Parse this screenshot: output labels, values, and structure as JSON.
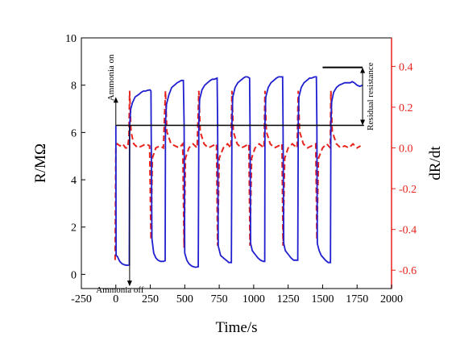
{
  "chart_data": {
    "type": "line",
    "xlabel": "Time/s",
    "ylabel_left": "R/MΩ",
    "ylabel_right": "dR/dt",
    "xlim": [
      -250,
      2000
    ],
    "ylim_left": [
      -0.6,
      10
    ],
    "ylim_right": [
      -0.69,
      0.54
    ],
    "x_ticks": [
      -250,
      0,
      250,
      500,
      750,
      1000,
      1250,
      1500,
      1750,
      2000
    ],
    "x_tick_labels": [
      "-250",
      "0",
      "250",
      "500",
      "750",
      "1000",
      "1250",
      "1500",
      "1750",
      "2000"
    ],
    "y_left_ticks": [
      0,
      2,
      4,
      6,
      8,
      10
    ],
    "y_left_tick_labels": [
      "0",
      "2",
      "4",
      "6",
      "8",
      "10"
    ],
    "y_right_ticks": [
      -0.6,
      -0.4,
      -0.2,
      0.0,
      0.2,
      0.4
    ],
    "y_right_tick_labels": [
      "-0.6",
      "-0.4",
      "-0.2",
      "0.0",
      "0.2",
      "0.4"
    ],
    "colors": {
      "resistance": "#1f1fd0",
      "derivative": "#e8221c",
      "axis_left": "#000000",
      "axis_right": "#e8221c"
    },
    "series": [
      {
        "axis": "left",
        "style": "solid",
        "points": [
          [
            0,
            6.3
          ],
          [
            2,
            0.8
          ],
          [
            12,
            0.75
          ],
          [
            28,
            0.55
          ],
          [
            45,
            0.45
          ],
          [
            65,
            0.4
          ],
          [
            85,
            0.38
          ],
          [
            98,
            0.4
          ],
          [
            100,
            6.3
          ],
          [
            108,
            7.0
          ],
          [
            120,
            7.25
          ],
          [
            140,
            7.5
          ],
          [
            165,
            7.6
          ],
          [
            185,
            7.7
          ],
          [
            200,
            7.75
          ],
          [
            215,
            7.75
          ],
          [
            230,
            7.78
          ],
          [
            248,
            7.8
          ],
          [
            255,
            7.75
          ],
          [
            256,
            6.4
          ],
          [
            262,
            1.5
          ],
          [
            275,
            0.9
          ],
          [
            290,
            0.7
          ],
          [
            305,
            0.6
          ],
          [
            325,
            0.55
          ],
          [
            345,
            0.55
          ],
          [
            358,
            0.58
          ],
          [
            360,
            6.4
          ],
          [
            368,
            7.2
          ],
          [
            385,
            7.6
          ],
          [
            405,
            7.9
          ],
          [
            425,
            8.0
          ],
          [
            445,
            8.1
          ],
          [
            460,
            8.15
          ],
          [
            475,
            8.2
          ],
          [
            490,
            8.2
          ],
          [
            495,
            6.4
          ],
          [
            500,
            0.9
          ],
          [
            515,
            0.6
          ],
          [
            530,
            0.45
          ],
          [
            550,
            0.35
          ],
          [
            575,
            0.3
          ],
          [
            598,
            0.32
          ],
          [
            602,
            6.4
          ],
          [
            608,
            7.4
          ],
          [
            625,
            7.8
          ],
          [
            645,
            8.0
          ],
          [
            665,
            8.1
          ],
          [
            685,
            8.2
          ],
          [
            700,
            8.25
          ],
          [
            715,
            8.25
          ],
          [
            735,
            8.3
          ],
          [
            738,
            6.4
          ],
          [
            743,
            1.2
          ],
          [
            760,
            0.8
          ],
          [
            780,
            0.7
          ],
          [
            800,
            0.6
          ],
          [
            820,
            0.5
          ],
          [
            838,
            0.5
          ],
          [
            842,
            6.4
          ],
          [
            848,
            7.5
          ],
          [
            865,
            7.9
          ],
          [
            885,
            8.1
          ],
          [
            905,
            8.2
          ],
          [
            925,
            8.3
          ],
          [
            940,
            8.35
          ],
          [
            955,
            8.35
          ],
          [
            970,
            8.3
          ],
          [
            973,
            6.4
          ],
          [
            978,
            1.3
          ],
          [
            990,
            1.0
          ],
          [
            1010,
            0.85
          ],
          [
            1030,
            0.7
          ],
          [
            1050,
            0.6
          ],
          [
            1070,
            0.55
          ],
          [
            1080,
            0.55
          ],
          [
            1082,
            6.4
          ],
          [
            1088,
            7.5
          ],
          [
            1105,
            7.9
          ],
          [
            1125,
            8.1
          ],
          [
            1145,
            8.2
          ],
          [
            1165,
            8.3
          ],
          [
            1180,
            8.35
          ],
          [
            1195,
            8.35
          ],
          [
            1210,
            8.35
          ],
          [
            1213,
            6.4
          ],
          [
            1218,
            1.3
          ],
          [
            1230,
            1.0
          ],
          [
            1250,
            0.85
          ],
          [
            1270,
            0.7
          ],
          [
            1290,
            0.6
          ],
          [
            1305,
            0.6
          ],
          [
            1320,
            0.6
          ],
          [
            1323,
            6.4
          ],
          [
            1328,
            7.5
          ],
          [
            1345,
            7.9
          ],
          [
            1365,
            8.1
          ],
          [
            1385,
            8.2
          ],
          [
            1405,
            8.3
          ],
          [
            1420,
            8.3
          ],
          [
            1440,
            8.35
          ],
          [
            1455,
            8.35
          ],
          [
            1458,
            6.4
          ],
          [
            1462,
            1.3
          ],
          [
            1475,
            1.0
          ],
          [
            1490,
            0.8
          ],
          [
            1505,
            0.7
          ],
          [
            1520,
            0.6
          ],
          [
            1540,
            0.5
          ],
          [
            1557,
            0.5
          ],
          [
            1560,
            6.4
          ],
          [
            1566,
            7.3
          ],
          [
            1580,
            7.7
          ],
          [
            1600,
            7.9
          ],
          [
            1620,
            8.0
          ],
          [
            1640,
            8.05
          ],
          [
            1660,
            8.1
          ],
          [
            1680,
            8.1
          ],
          [
            1700,
            8.1
          ],
          [
            1715,
            8.15
          ],
          [
            1730,
            8.1
          ],
          [
            1750,
            8.0
          ],
          [
            1770,
            7.95
          ],
          [
            1790,
            8.0
          ]
        ]
      },
      {
        "axis": "right",
        "style": "dashed",
        "points": [
          [
            -5,
            -0.55
          ],
          [
            0,
            0.0
          ],
          [
            10,
            0.02
          ],
          [
            30,
            0.01
          ],
          [
            50,
            0.02
          ],
          [
            70,
            0.0
          ],
          [
            85,
            0.0
          ],
          [
            95,
            0.05
          ],
          [
            100,
            0.28
          ],
          [
            110,
            0.08
          ],
          [
            130,
            0.02
          ],
          [
            160,
            0.0
          ],
          [
            190,
            0.01
          ],
          [
            220,
            0.02
          ],
          [
            245,
            0.01
          ],
          [
            255,
            -0.45
          ],
          [
            265,
            -0.05
          ],
          [
            290,
            0.0
          ],
          [
            320,
            0.01
          ],
          [
            345,
            0.0
          ],
          [
            360,
            0.28
          ],
          [
            370,
            0.08
          ],
          [
            400,
            0.02
          ],
          [
            430,
            0.01
          ],
          [
            460,
            0.0
          ],
          [
            485,
            0.02
          ],
          [
            495,
            -0.49
          ],
          [
            505,
            -0.05
          ],
          [
            530,
            0.0
          ],
          [
            560,
            0.02
          ],
          [
            590,
            0.0
          ],
          [
            602,
            0.28
          ],
          [
            612,
            0.08
          ],
          [
            640,
            0.02
          ],
          [
            670,
            0.0
          ],
          [
            700,
            0.01
          ],
          [
            730,
            0.02
          ],
          [
            738,
            -0.48
          ],
          [
            750,
            -0.05
          ],
          [
            780,
            0.0
          ],
          [
            810,
            0.02
          ],
          [
            835,
            0.0
          ],
          [
            842,
            0.28
          ],
          [
            852,
            0.08
          ],
          [
            880,
            0.02
          ],
          [
            910,
            0.0
          ],
          [
            940,
            0.01
          ],
          [
            965,
            0.02
          ],
          [
            973,
            -0.48
          ],
          [
            985,
            -0.05
          ],
          [
            1010,
            0.0
          ],
          [
            1040,
            0.02
          ],
          [
            1075,
            0.0
          ],
          [
            1082,
            0.28
          ],
          [
            1092,
            0.08
          ],
          [
            1120,
            0.02
          ],
          [
            1150,
            0.0
          ],
          [
            1180,
            0.01
          ],
          [
            1205,
            0.02
          ],
          [
            1213,
            -0.48
          ],
          [
            1225,
            -0.05
          ],
          [
            1250,
            0.0
          ],
          [
            1280,
            0.02
          ],
          [
            1315,
            0.0
          ],
          [
            1323,
            0.28
          ],
          [
            1333,
            0.08
          ],
          [
            1360,
            0.02
          ],
          [
            1390,
            0.0
          ],
          [
            1420,
            0.01
          ],
          [
            1450,
            0.02
          ],
          [
            1458,
            -0.45
          ],
          [
            1470,
            -0.05
          ],
          [
            1500,
            0.0
          ],
          [
            1530,
            0.02
          ],
          [
            1555,
            0.0
          ],
          [
            1560,
            0.28
          ],
          [
            1570,
            0.08
          ],
          [
            1600,
            0.02
          ],
          [
            1630,
            0.0
          ],
          [
            1660,
            0.01
          ],
          [
            1690,
            0.0
          ],
          [
            1720,
            0.02
          ],
          [
            1750,
            0.0
          ],
          [
            1775,
            0.01
          ]
        ]
      }
    ],
    "baseline": {
      "x_start": 0,
      "x_end": 1800,
      "y": 6.3
    },
    "residual_marker": {
      "x": 1790,
      "y_top": 8.75,
      "y_bottom": 6.3,
      "top_x_start": 1500,
      "top_x_end": 1790,
      "label": "Residual resistance"
    },
    "annotations": {
      "ammonia_on": {
        "label": "Ammonia on",
        "x": 0,
        "y_from": 6.3,
        "y_to": 7.5
      },
      "ammonia_off": {
        "label": "Ammonia off",
        "x": 100,
        "y_from": 6.3,
        "y_to": -0.5
      }
    }
  }
}
